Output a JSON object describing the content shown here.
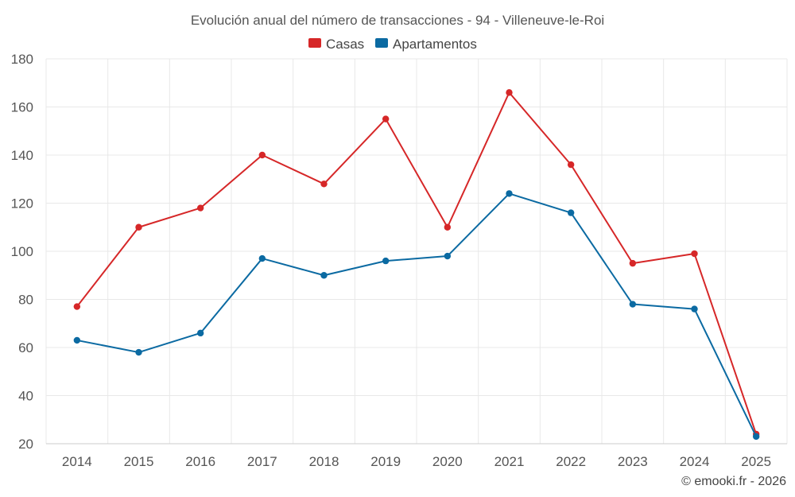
{
  "chart_data": {
    "type": "line",
    "title": "Evolución anual del número de transacciones - 94 - Villeneuve-le-Roi",
    "categories": [
      "2014",
      "2015",
      "2016",
      "2017",
      "2018",
      "2019",
      "2020",
      "2021",
      "2022",
      "2023",
      "2024",
      "2025"
    ],
    "series": [
      {
        "name": "Casas",
        "color": "#d62728",
        "values": [
          77,
          110,
          118,
          140,
          128,
          155,
          110,
          166,
          136,
          95,
          99,
          24
        ]
      },
      {
        "name": "Apartamentos",
        "color": "#0b6aa2",
        "values": [
          63,
          58,
          66,
          97,
          90,
          96,
          98,
          124,
          116,
          78,
          76,
          23
        ]
      }
    ],
    "y_ticks": [
      "20",
      "40",
      "60",
      "80",
      "100",
      "120",
      "140",
      "160",
      "180"
    ],
    "ylim": [
      20,
      180
    ],
    "xlabel": "",
    "ylabel": "",
    "grid": true,
    "legend_position": "top-center"
  },
  "credit": "© emooki.fr - 2026"
}
